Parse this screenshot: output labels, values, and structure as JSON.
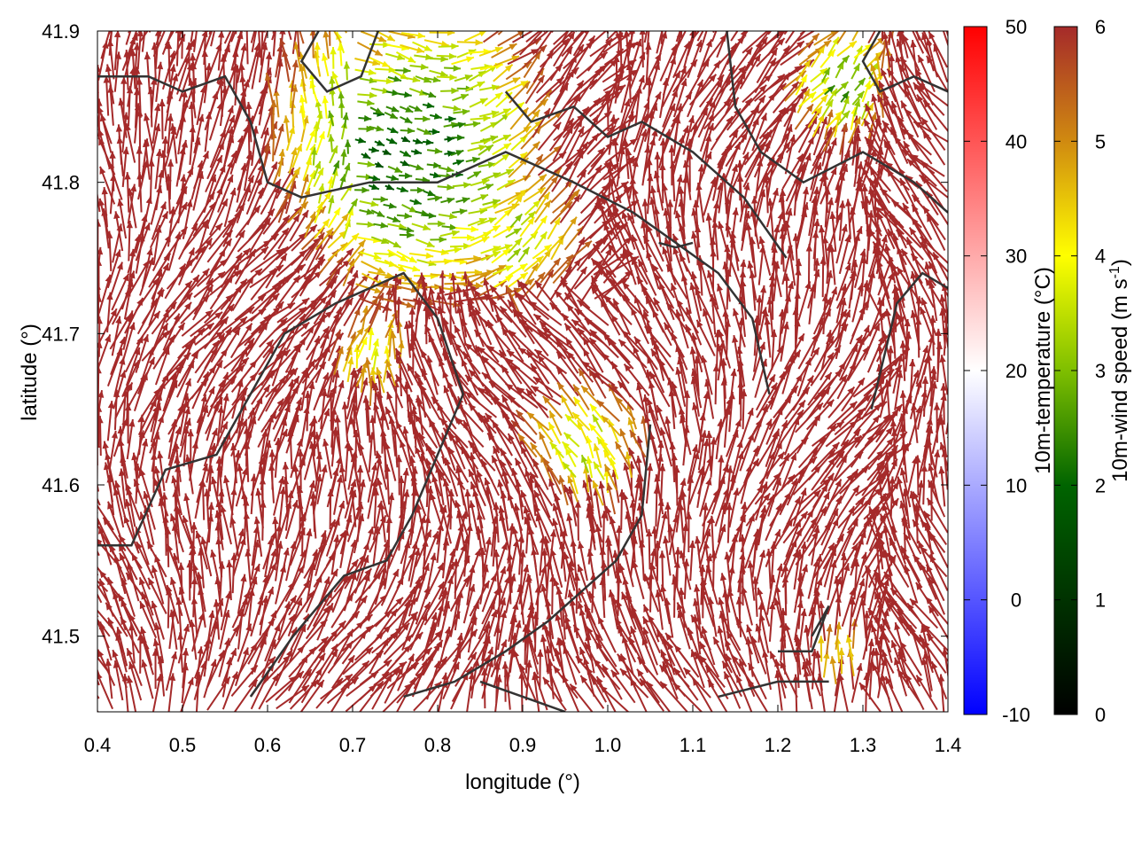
{
  "chart_data": {
    "type": "vector-field",
    "xlabel": "longitude (°)",
    "ylabel": "latitude (°)",
    "xlim": [
      0.4,
      1.4
    ],
    "ylim": [
      41.45,
      41.9
    ],
    "xticks": [
      "0.4",
      "0.5",
      "0.6",
      "0.7",
      "0.8",
      "0.9",
      "1.0",
      "1.1",
      "1.2",
      "1.3",
      "1.4"
    ],
    "yticks": [
      "41.5",
      "41.6",
      "41.7",
      "41.8",
      "41.9"
    ],
    "grid": false,
    "vector_color_default": "#a52a2a",
    "contour_color": "#333333",
    "colorbars": [
      {
        "label": "10m-temperature (°C)",
        "range": [
          -10,
          50
        ],
        "ticks": [
          "-10",
          "0",
          "10",
          "20",
          "30",
          "40",
          "50"
        ],
        "colors": [
          "#0000ff",
          "#ffffff",
          "#ff0000"
        ]
      },
      {
        "label_main": "10m-wind speed (m s",
        "label_sup": "-1",
        "label_end": ")",
        "range": [
          0,
          6
        ],
        "ticks": [
          "0",
          "1",
          "2",
          "3",
          "4",
          "5",
          "6"
        ],
        "colors": [
          "#000000",
          "#006400",
          "#7fbf00",
          "#ffff00",
          "#d08a10",
          "#a52a2a"
        ]
      }
    ],
    "slow_wind_regions": [
      {
        "lon": 0.76,
        "lat": 41.82,
        "radius": 0.17,
        "min_speed": 2.0
      },
      {
        "lon": 0.88,
        "lat": 41.76,
        "radius": 0.08,
        "min_speed": 3.5
      },
      {
        "lon": 0.98,
        "lat": 41.62,
        "radius": 0.07,
        "min_speed": 3.6
      },
      {
        "lon": 1.27,
        "lat": 41.86,
        "radius": 0.07,
        "min_speed": 2.8
      },
      {
        "lon": 1.27,
        "lat": 41.48,
        "radius": 0.03,
        "min_speed": 4.0
      },
      {
        "lon": 0.72,
        "lat": 41.68,
        "radius": 0.05,
        "min_speed": 4.2
      }
    ],
    "contours": [
      [
        [
          0.4,
          41.56
        ],
        [
          0.44,
          41.56
        ],
        [
          0.48,
          41.61
        ],
        [
          0.54,
          41.62
        ],
        [
          0.58,
          41.66
        ],
        [
          0.62,
          41.7
        ],
        [
          0.68,
          41.72
        ],
        [
          0.76,
          41.74
        ],
        [
          0.8,
          41.71
        ],
        [
          0.83,
          41.66
        ],
        [
          0.8,
          41.62
        ],
        [
          0.77,
          41.58
        ],
        [
          0.74,
          41.55
        ],
        [
          0.69,
          41.54
        ],
        [
          0.63,
          41.5
        ],
        [
          0.58,
          41.46
        ]
      ],
      [
        [
          0.4,
          41.87
        ],
        [
          0.46,
          41.87
        ],
        [
          0.5,
          41.86
        ],
        [
          0.55,
          41.87
        ],
        [
          0.58,
          41.84
        ],
        [
          0.6,
          41.8
        ],
        [
          0.64,
          41.79
        ],
        [
          0.72,
          41.8
        ],
        [
          0.8,
          41.8
        ],
        [
          0.88,
          41.82
        ],
        [
          0.96,
          41.8
        ],
        [
          1.03,
          41.78
        ],
        [
          1.08,
          41.76
        ],
        [
          1.13,
          41.74
        ],
        [
          1.17,
          41.71
        ],
        [
          1.19,
          41.66
        ]
      ],
      [
        [
          0.66,
          41.9
        ],
        [
          0.64,
          41.88
        ],
        [
          0.67,
          41.86
        ],
        [
          0.71,
          41.87
        ],
        [
          0.73,
          41.9
        ]
      ],
      [
        [
          0.88,
          41.86
        ],
        [
          0.91,
          41.84
        ],
        [
          0.96,
          41.85
        ],
        [
          1.0,
          41.83
        ],
        [
          1.04,
          41.84
        ],
        [
          1.1,
          41.82
        ],
        [
          1.16,
          41.79
        ],
        [
          1.21,
          41.75
        ]
      ],
      [
        [
          1.14,
          41.9
        ],
        [
          1.15,
          41.85
        ],
        [
          1.18,
          41.82
        ],
        [
          1.23,
          41.8
        ],
        [
          1.3,
          41.82
        ],
        [
          1.36,
          41.8
        ],
        [
          1.4,
          41.78
        ]
      ],
      [
        [
          1.06,
          41.76
        ],
        [
          1.08,
          41.757
        ],
        [
          1.1,
          41.76
        ]
      ],
      [
        [
          1.05,
          41.64
        ],
        [
          1.04,
          41.58
        ],
        [
          1.01,
          41.55
        ],
        [
          0.97,
          41.53
        ],
        [
          0.93,
          41.51
        ],
        [
          0.88,
          41.49
        ],
        [
          0.82,
          41.47
        ],
        [
          0.76,
          41.46
        ]
      ],
      [
        [
          1.2,
          41.49
        ],
        [
          1.24,
          41.49
        ],
        [
          1.26,
          41.52
        ],
        [
          1.24,
          41.5
        ]
      ],
      [
        [
          1.31,
          41.65
        ],
        [
          1.34,
          41.72
        ],
        [
          1.37,
          41.74
        ],
        [
          1.4,
          41.73
        ]
      ],
      [
        [
          0.85,
          41.47
        ],
        [
          0.9,
          41.46
        ],
        [
          0.95,
          41.45
        ]
      ],
      [
        [
          1.13,
          41.46
        ],
        [
          1.2,
          41.47
        ],
        [
          1.26,
          41.47
        ]
      ],
      [
        [
          1.32,
          41.9
        ],
        [
          1.3,
          41.88
        ],
        [
          1.32,
          41.86
        ],
        [
          1.36,
          41.87
        ],
        [
          1.4,
          41.86
        ]
      ]
    ]
  }
}
